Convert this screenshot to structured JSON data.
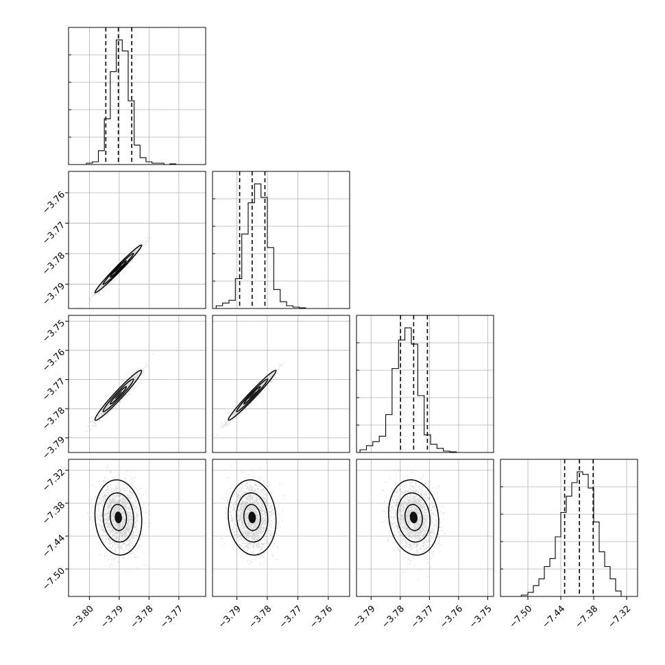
{
  "chart_data": {
    "type": "corner",
    "grid": true,
    "parameters": [
      {
        "range": [
          -3.807,
          -3.761
        ],
        "ticks": [
          "−3.80",
          "−3.79",
          "−3.78",
          "−3.77"
        ],
        "tick_values": [
          -3.8,
          -3.79,
          -3.78,
          -3.77
        ]
      },
      {
        "range": [
          -3.798,
          -3.753
        ],
        "ticks": [
          "−3.79",
          "−3.78",
          "−3.77",
          "−3.76"
        ],
        "tick_values": [
          -3.79,
          -3.78,
          -3.77,
          -3.76
        ]
      },
      {
        "range": [
          -3.795,
          -3.748
        ],
        "ticks": [
          "−3.79",
          "−3.78",
          "−3.77",
          "−3.76",
          "−3.75"
        ],
        "tick_values": [
          -3.79,
          -3.78,
          -3.77,
          -3.76,
          -3.75
        ]
      },
      {
        "range": [
          -7.55,
          -7.3
        ],
        "ticks": [
          "−7.50",
          "−7.44",
          "−7.38",
          "−7.32"
        ],
        "tick_values": [
          -7.5,
          -7.44,
          -7.38,
          -7.32
        ]
      }
    ],
    "row_label_ticks": [
      {
        "row": 1,
        "ticks": [
          "−3.76",
          "−3.77",
          "−3.78",
          "−3.79"
        ]
      },
      {
        "row": 2,
        "ticks": [
          "−3.75",
          "−3.76",
          "−3.77",
          "−3.78",
          "−3.79"
        ]
      },
      {
        "row": 3,
        "ticks": [
          "−7.32",
          "−7.38",
          "−7.44",
          "−7.50"
        ]
      }
    ],
    "quantiles": [
      {
        "q16": -3.7945,
        "q50": -3.7903,
        "q84": -3.7858
      },
      {
        "q16": -3.7891,
        "q50": -3.785,
        "q84": -3.7808
      },
      {
        "q16": -3.7799,
        "q50": -3.7754,
        "q84": -3.7707
      },
      {
        "q16": -7.433,
        "q50": -7.406,
        "q84": -7.381
      }
    ],
    "histograms": [
      {
        "bin_edges": [
          -3.801,
          -3.799,
          -3.797,
          -3.795,
          -3.793,
          -3.791,
          -3.789,
          -3.787,
          -3.785,
          -3.783,
          -3.781,
          -3.779,
          -3.777,
          -3.775,
          -3.773,
          -3.771,
          -3.769
        ],
        "counts": [
          1,
          2,
          10,
          33,
          67,
          90,
          82,
          46,
          14,
          5,
          2,
          1,
          1,
          0,
          0.5,
          0
        ]
      },
      {
        "bin_edges": [
          -3.7968,
          -3.7947,
          -3.7926,
          -3.7905,
          -3.7884,
          -3.7863,
          -3.7842,
          -3.7821,
          -3.78,
          -3.7779,
          -3.7758,
          -3.7737,
          -3.7716,
          -3.7695,
          -3.7674,
          -3.7653
        ],
        "counts": [
          2,
          4,
          6,
          22,
          55,
          78,
          92,
          82,
          45,
          14,
          5,
          2,
          1,
          0.5,
          0
        ]
      },
      {
        "bin_edges": [
          -3.7938,
          -3.7916,
          -3.7894,
          -3.7872,
          -3.785,
          -3.7828,
          -3.7806,
          -3.7784,
          -3.7762,
          -3.774,
          -3.7718,
          -3.7696,
          -3.7674,
          -3.7652,
          -3.763,
          -3.7608
        ],
        "counts": [
          2,
          5,
          8,
          12,
          28,
          62,
          83,
          92,
          80,
          42,
          13,
          6,
          3,
          1,
          0.5
        ]
      },
      {
        "bin_edges": [
          -7.512,
          -7.5,
          -7.49,
          -7.48,
          -7.47,
          -7.46,
          -7.45,
          -7.44,
          -7.43,
          -7.42,
          -7.41,
          -7.4,
          -7.39,
          -7.38,
          -7.37,
          -7.36,
          -7.35,
          -7.34,
          -7.33
        ],
        "counts": [
          1,
          3,
          8,
          13,
          22,
          28,
          44,
          62,
          74,
          84,
          92,
          90,
          80,
          55,
          33,
          22,
          13,
          4
        ]
      }
    ],
    "pairs": [
      {
        "row": 1,
        "col": 0,
        "mean": [
          -3.7903,
          -3.785
        ],
        "sigma": [
          0.0032,
          0.0032
        ],
        "rho": 0.985
      },
      {
        "row": 2,
        "col": 0,
        "mean": [
          -3.7903,
          -3.7754
        ],
        "sigma": [
          0.0032,
          0.0035
        ],
        "rho": 0.97
      },
      {
        "row": 2,
        "col": 1,
        "mean": [
          -3.785,
          -3.7754
        ],
        "sigma": [
          0.0032,
          0.0035
        ],
        "rho": 0.98
      },
      {
        "row": 3,
        "col": 0,
        "mean": [
          -3.7903,
          -7.406
        ],
        "sigma": [
          0.0032,
          0.028
        ],
        "rho": -0.08
      },
      {
        "row": 3,
        "col": 1,
        "mean": [
          -3.785,
          -7.406
        ],
        "sigma": [
          0.0032,
          0.028
        ],
        "rho": -0.08
      },
      {
        "row": 3,
        "col": 2,
        "mean": [
          -3.7754,
          -7.406
        ],
        "sigma": [
          0.0035,
          0.028
        ],
        "rho": -0.12
      }
    ]
  }
}
